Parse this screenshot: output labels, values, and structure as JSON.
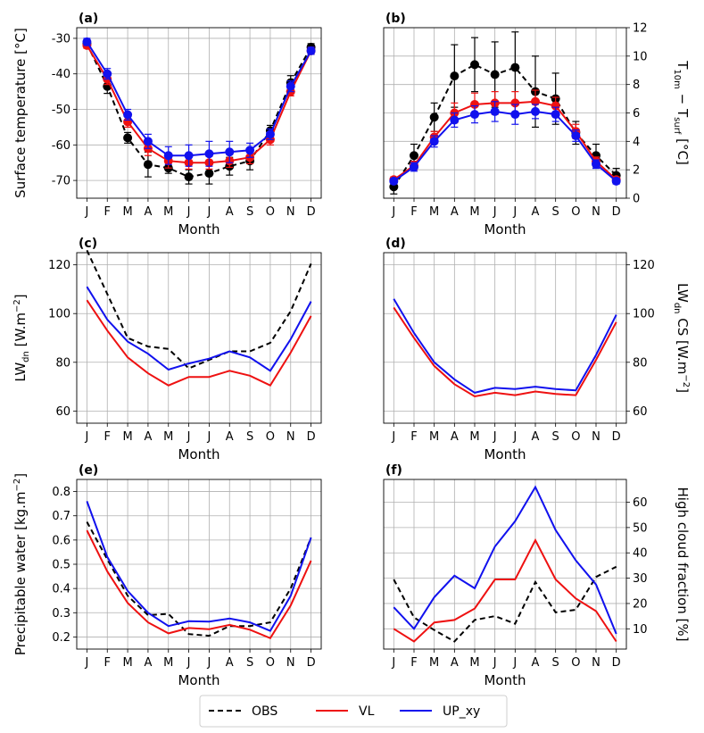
{
  "months": [
    "J",
    "F",
    "M",
    "A",
    "M",
    "J",
    "J",
    "A",
    "S",
    "O",
    "N",
    "D"
  ],
  "colors": {
    "OBS": "#000000",
    "VL": "#ee1111",
    "UP_xy": "#1111ee"
  },
  "legend": {
    "items": [
      {
        "key": "OBS",
        "label": "OBS",
        "color": "#000000",
        "style": "dashed"
      },
      {
        "key": "VL",
        "label": "VL",
        "color": "#ee1111",
        "style": "solid"
      },
      {
        "key": "UP_xy",
        "label": "UP_xy",
        "color": "#1111ee",
        "style": "solid"
      }
    ]
  },
  "chart_data": [
    {
      "panel": "(a)",
      "type": "line",
      "xlabel": "Month",
      "ylabel": "Surface temperature [°C]",
      "ylabel_side": "left",
      "ylim": [
        -75,
        -27
      ],
      "yticks": [
        -30,
        -40,
        -50,
        -60,
        -70
      ],
      "series": [
        {
          "name": "OBS",
          "style": "dashed",
          "marker": true,
          "values": [
            -31.5,
            -43.5,
            -58.0,
            -65.5,
            -66.5,
            -69.0,
            -68.0,
            -66.0,
            -64.5,
            -56.0,
            -42.5,
            -32.5
          ],
          "errors": [
            1.0,
            2.0,
            1.5,
            3.5,
            1.5,
            2.0,
            3.0,
            2.5,
            2.5,
            1.5,
            2.0,
            1.0
          ]
        },
        {
          "name": "VL",
          "style": "solid",
          "marker": true,
          "values": [
            -32.0,
            -41.5,
            -53.5,
            -61.0,
            -64.5,
            -65.0,
            -65.0,
            -64.5,
            -63.5,
            -58.5,
            -45.0,
            -33.5
          ],
          "errors": [
            0.8,
            1.5,
            1.5,
            2.0,
            2.0,
            1.8,
            1.8,
            1.8,
            1.8,
            1.5,
            1.2,
            1.0
          ]
        },
        {
          "name": "UP_xy",
          "style": "solid",
          "marker": true,
          "values": [
            -31.0,
            -40.0,
            -51.5,
            -59.0,
            -63.0,
            -63.0,
            -62.5,
            -62.0,
            -61.5,
            -57.0,
            -43.5,
            -33.5
          ],
          "errors": [
            1.0,
            1.5,
            1.5,
            2.0,
            2.5,
            3.0,
            3.5,
            3.0,
            2.0,
            1.5,
            1.5,
            1.0
          ]
        }
      ]
    },
    {
      "panel": "(b)",
      "type": "line",
      "xlabel": "Month",
      "ylabel": "T10m − Tsurf [°C]",
      "ylabel_main": "T",
      "ylabel_sub1": "10m",
      "ylabel_mid": " − T",
      "ylabel_sub2": "surf",
      "ylabel_tail": " [°C]",
      "ylabel_side": "right",
      "ylim": [
        0,
        12
      ],
      "yticks": [
        0,
        2,
        4,
        6,
        8,
        10,
        12
      ],
      "series": [
        {
          "name": "OBS",
          "style": "dashed",
          "marker": true,
          "values": [
            0.8,
            3.0,
            5.7,
            8.6,
            9.4,
            8.7,
            9.2,
            7.5,
            7.0,
            4.6,
            3.0,
            1.6
          ],
          "errors": [
            0.5,
            0.8,
            1.0,
            2.2,
            1.9,
            2.3,
            2.5,
            2.5,
            1.8,
            0.8,
            0.8,
            0.5
          ]
        },
        {
          "name": "VL",
          "style": "solid",
          "marker": true,
          "values": [
            1.3,
            2.3,
            4.3,
            6.0,
            6.6,
            6.7,
            6.7,
            6.8,
            6.5,
            4.7,
            2.6,
            1.3
          ],
          "errors": [
            0.2,
            0.3,
            0.4,
            0.7,
            0.8,
            0.8,
            0.8,
            0.8,
            0.6,
            0.5,
            0.3,
            0.2
          ]
        },
        {
          "name": "UP_xy",
          "style": "solid",
          "marker": true,
          "values": [
            1.2,
            2.2,
            4.0,
            5.5,
            5.9,
            6.1,
            5.9,
            6.1,
            5.9,
            4.4,
            2.4,
            1.2
          ],
          "errors": [
            0.2,
            0.3,
            0.4,
            0.5,
            0.6,
            0.7,
            0.7,
            0.5,
            0.5,
            0.4,
            0.3,
            0.2
          ]
        }
      ]
    },
    {
      "panel": "(c)",
      "type": "line",
      "xlabel": "Month",
      "ylabel": "LWdn [W.m−2]",
      "ylabel_main": "LW",
      "ylabel_sub1": "dn",
      "ylabel_mid": " [W.m",
      "ylabel_sup": "−2",
      "ylabel_tail": "]",
      "ylabel_side": "left",
      "ylim": [
        55,
        125
      ],
      "yticks": [
        60,
        80,
        100,
        120
      ],
      "series": [
        {
          "name": "OBS",
          "style": "dashed",
          "marker": false,
          "values": [
            126,
            108,
            90,
            86.5,
            85.5,
            77.5,
            81,
            84.5,
            84.5,
            88,
            101,
            120.5
          ]
        },
        {
          "name": "VL",
          "style": "solid",
          "marker": false,
          "values": [
            105.5,
            93,
            82,
            75.5,
            70.5,
            74,
            74,
            76.5,
            74.5,
            70.5,
            84,
            99
          ]
        },
        {
          "name": "UP_xy",
          "style": "solid",
          "marker": false,
          "values": [
            111,
            97.5,
            88.5,
            83.5,
            77,
            79.5,
            81.5,
            84.5,
            82,
            76.5,
            89.5,
            105
          ]
        }
      ]
    },
    {
      "panel": "(d)",
      "type": "line",
      "xlabel": "Month",
      "ylabel": "LWdn CS [W.m−2]",
      "ylabel_main": "LW",
      "ylabel_sub1": "dn",
      "ylabel_mid": " CS [W.m",
      "ylabel_sup": "−2",
      "ylabel_tail": "]",
      "ylabel_side": "right",
      "ylim": [
        55,
        125
      ],
      "yticks": [
        60,
        80,
        100,
        120
      ],
      "series": [
        {
          "name": "VL",
          "style": "solid",
          "marker": false,
          "values": [
            102.5,
            90,
            78.5,
            71,
            66,
            67.5,
            66.5,
            68,
            67,
            66.5,
            81,
            96.5
          ]
        },
        {
          "name": "UP_xy",
          "style": "solid",
          "marker": false,
          "values": [
            106,
            92,
            80,
            73,
            67.5,
            69.5,
            69,
            70,
            69,
            68.5,
            83,
            99.5
          ]
        }
      ]
    },
    {
      "panel": "(e)",
      "type": "line",
      "xlabel": "Month",
      "ylabel": "Precipitable water [kg.m−2]",
      "ylabel_main": "Precipitable water [kg.m",
      "ylabel_sup": "−2",
      "ylabel_tail": "]",
      "ylabel_side": "left",
      "ylim": [
        0.15,
        0.85
      ],
      "yticks": [
        0.2,
        0.3,
        0.4,
        0.5,
        0.6,
        0.7,
        0.8
      ],
      "series": [
        {
          "name": "OBS",
          "style": "dashed",
          "marker": false,
          "values": [
            0.675,
            0.52,
            0.37,
            0.29,
            0.295,
            0.212,
            0.205,
            0.245,
            0.245,
            0.26,
            0.4,
            0.61
          ]
        },
        {
          "name": "VL",
          "style": "solid",
          "marker": false,
          "values": [
            0.64,
            0.47,
            0.34,
            0.26,
            0.215,
            0.237,
            0.232,
            0.25,
            0.23,
            0.195,
            0.33,
            0.515
          ]
        },
        {
          "name": "UP_xy",
          "style": "solid",
          "marker": false,
          "values": [
            0.76,
            0.53,
            0.39,
            0.3,
            0.245,
            0.265,
            0.263,
            0.276,
            0.26,
            0.225,
            0.37,
            0.61
          ]
        }
      ]
    },
    {
      "panel": "(f)",
      "type": "line",
      "xlabel": "Month",
      "ylabel": "High cloud fraction [%]",
      "ylabel_main": "High cloud fraction [%]",
      "ylabel_side": "right",
      "ylim": [
        2,
        69
      ],
      "yticks": [
        10,
        20,
        30,
        40,
        50,
        60
      ],
      "series": [
        {
          "name": "OBS",
          "style": "dashed",
          "marker": false,
          "values": [
            29.5,
            14.5,
            9.5,
            5,
            13.5,
            15,
            12,
            28.5,
            16.5,
            17.5,
            30.5,
            34.5
          ]
        },
        {
          "name": "VL",
          "style": "solid",
          "marker": false,
          "values": [
            10,
            5,
            12.5,
            13.5,
            18,
            29.5,
            29.5,
            45,
            29.5,
            22,
            17,
            5
          ]
        },
        {
          "name": "UP_xy",
          "style": "solid",
          "marker": false,
          "values": [
            18.5,
            10,
            22.5,
            31,
            26,
            42.5,
            52.5,
            66,
            49,
            37,
            27.5,
            8
          ]
        }
      ]
    }
  ]
}
